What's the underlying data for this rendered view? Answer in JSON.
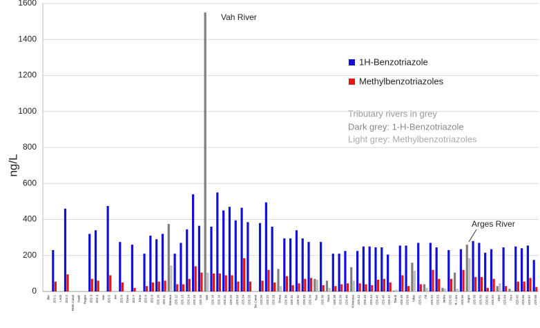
{
  "chart_data": {
    "type": "bar",
    "ylabel": "ng/L",
    "categories": [
      "Iller",
      "JDS 1",
      "Lech",
      "JDS 2",
      "RMD Canal",
      "Naab",
      "Regen",
      "JDS 3",
      "JDS 4",
      "Isar",
      "JDS 5",
      "Inn",
      "JDS 6",
      "Traun",
      "JDS 7",
      "Enns",
      "JDS 8",
      "JDS 9",
      "JDS 10",
      "JDS 11",
      "Morava",
      "JDS 12",
      "JDS 13",
      "JDS 14",
      "JDS 15",
      "JDS 16",
      "Vah",
      "JDS 18",
      "JDS 19",
      "JDS 21",
      "JDS 22",
      "JDS 23",
      "JDS 24",
      "JDS 25",
      "Sio Canal",
      "JDS 26",
      "JDS 27",
      "JDS 28",
      "Drava",
      "JDS 30",
      "JDS 31",
      "JDS 32",
      "JDS 33",
      "JDS 34",
      "Tisa",
      "JDS 36",
      "Sava",
      "JDS 38",
      "JDS 39",
      "JDS 40",
      "V.Morava",
      "JDS 42",
      "JDS 43",
      "JDS 44",
      "JDS 45",
      "JDS 46",
      "JDS 47",
      "Timok",
      "JDS 49",
      "JDS 50",
      "Iskar",
      "JDS 51",
      "Olt",
      "JDS 52",
      "JDS 53",
      "Jantra",
      "JDS 55",
      "R. Lom",
      "JDS 56",
      "Arges",
      "JDS 58",
      "JDS 59",
      "JDS 61",
      "JDS 62",
      "Siret",
      "JDS 64",
      "Prut",
      "JDS 65",
      "JDS 66",
      "JDS 67",
      "JDS 68"
    ],
    "series": [
      {
        "name": "1H-Benzotriazole",
        "color": "#1010d8",
        "values": [
          null,
          230,
          null,
          460,
          null,
          null,
          null,
          320,
          340,
          null,
          475,
          null,
          275,
          null,
          260,
          null,
          210,
          310,
          290,
          320,
          null,
          210,
          270,
          345,
          540,
          365,
          null,
          360,
          550,
          450,
          470,
          395,
          465,
          385,
          null,
          380,
          495,
          360,
          null,
          295,
          295,
          340,
          295,
          275,
          null,
          275,
          null,
          210,
          210,
          225,
          null,
          225,
          250,
          250,
          245,
          245,
          205,
          null,
          255,
          255,
          null,
          270,
          null,
          270,
          245,
          null,
          230,
          null,
          235,
          null,
          280,
          270,
          215,
          235,
          null,
          245,
          null,
          250,
          240,
          255,
          175
        ]
      },
      {
        "name": "Methylbenzotriazoles",
        "color": "#e01818",
        "values": [
          null,
          55,
          null,
          95,
          null,
          null,
          null,
          70,
          60,
          null,
          90,
          null,
          50,
          null,
          20,
          null,
          30,
          50,
          55,
          60,
          null,
          40,
          40,
          70,
          140,
          105,
          null,
          100,
          100,
          90,
          90,
          55,
          185,
          55,
          null,
          60,
          120,
          50,
          null,
          85,
          35,
          45,
          70,
          75,
          null,
          35,
          null,
          30,
          40,
          45,
          null,
          45,
          40,
          35,
          65,
          70,
          50,
          null,
          90,
          30,
          null,
          40,
          null,
          120,
          70,
          null,
          70,
          null,
          120,
          null,
          80,
          80,
          20,
          70,
          null,
          30,
          null,
          55,
          55,
          75,
          25
        ]
      },
      {
        "color": "#7f7f7f",
        "values": [
          null,
          null,
          null,
          null,
          null,
          null,
          null,
          null,
          null,
          null,
          null,
          null,
          null,
          null,
          null,
          null,
          null,
          null,
          null,
          null,
          375,
          null,
          null,
          null,
          null,
          null,
          1550,
          null,
          null,
          null,
          null,
          null,
          null,
          null,
          null,
          null,
          null,
          null,
          125,
          null,
          null,
          null,
          null,
          null,
          70,
          null,
          60,
          null,
          null,
          null,
          135,
          null,
          null,
          null,
          null,
          null,
          null,
          5,
          null,
          null,
          160,
          null,
          40,
          null,
          null,
          20,
          null,
          105,
          null,
          260,
          null,
          null,
          null,
          null,
          30,
          null,
          15,
          null,
          null,
          null,
          null
        ]
      },
      {
        "color": "#bfbfbf",
        "values": [
          null,
          null,
          null,
          null,
          null,
          null,
          null,
          null,
          null,
          null,
          null,
          null,
          null,
          null,
          null,
          null,
          null,
          null,
          null,
          null,
          145,
          null,
          null,
          null,
          null,
          null,
          105,
          null,
          null,
          null,
          null,
          null,
          null,
          null,
          null,
          null,
          null,
          null,
          30,
          null,
          null,
          null,
          null,
          null,
          65,
          null,
          20,
          null,
          null,
          null,
          60,
          null,
          null,
          null,
          null,
          null,
          null,
          10,
          null,
          null,
          115,
          null,
          20,
          null,
          null,
          15,
          null,
          15,
          null,
          185,
          null,
          null,
          null,
          null,
          45,
          null,
          5,
          null,
          null,
          null,
          null
        ]
      }
    ],
    "ylim": [
      0,
      1600
    ],
    "yticks": [
      0,
      200,
      400,
      600,
      800,
      1000,
      1200,
      1400,
      1600
    ],
    "grid": true,
    "annotations": [
      "Vah River",
      "Arges River"
    ],
    "notes": [
      "Tributary rivers in grey",
      "Dark grey: 1-H-Benzotriazole",
      "Light grey: Methylbenzotriazoles"
    ]
  }
}
